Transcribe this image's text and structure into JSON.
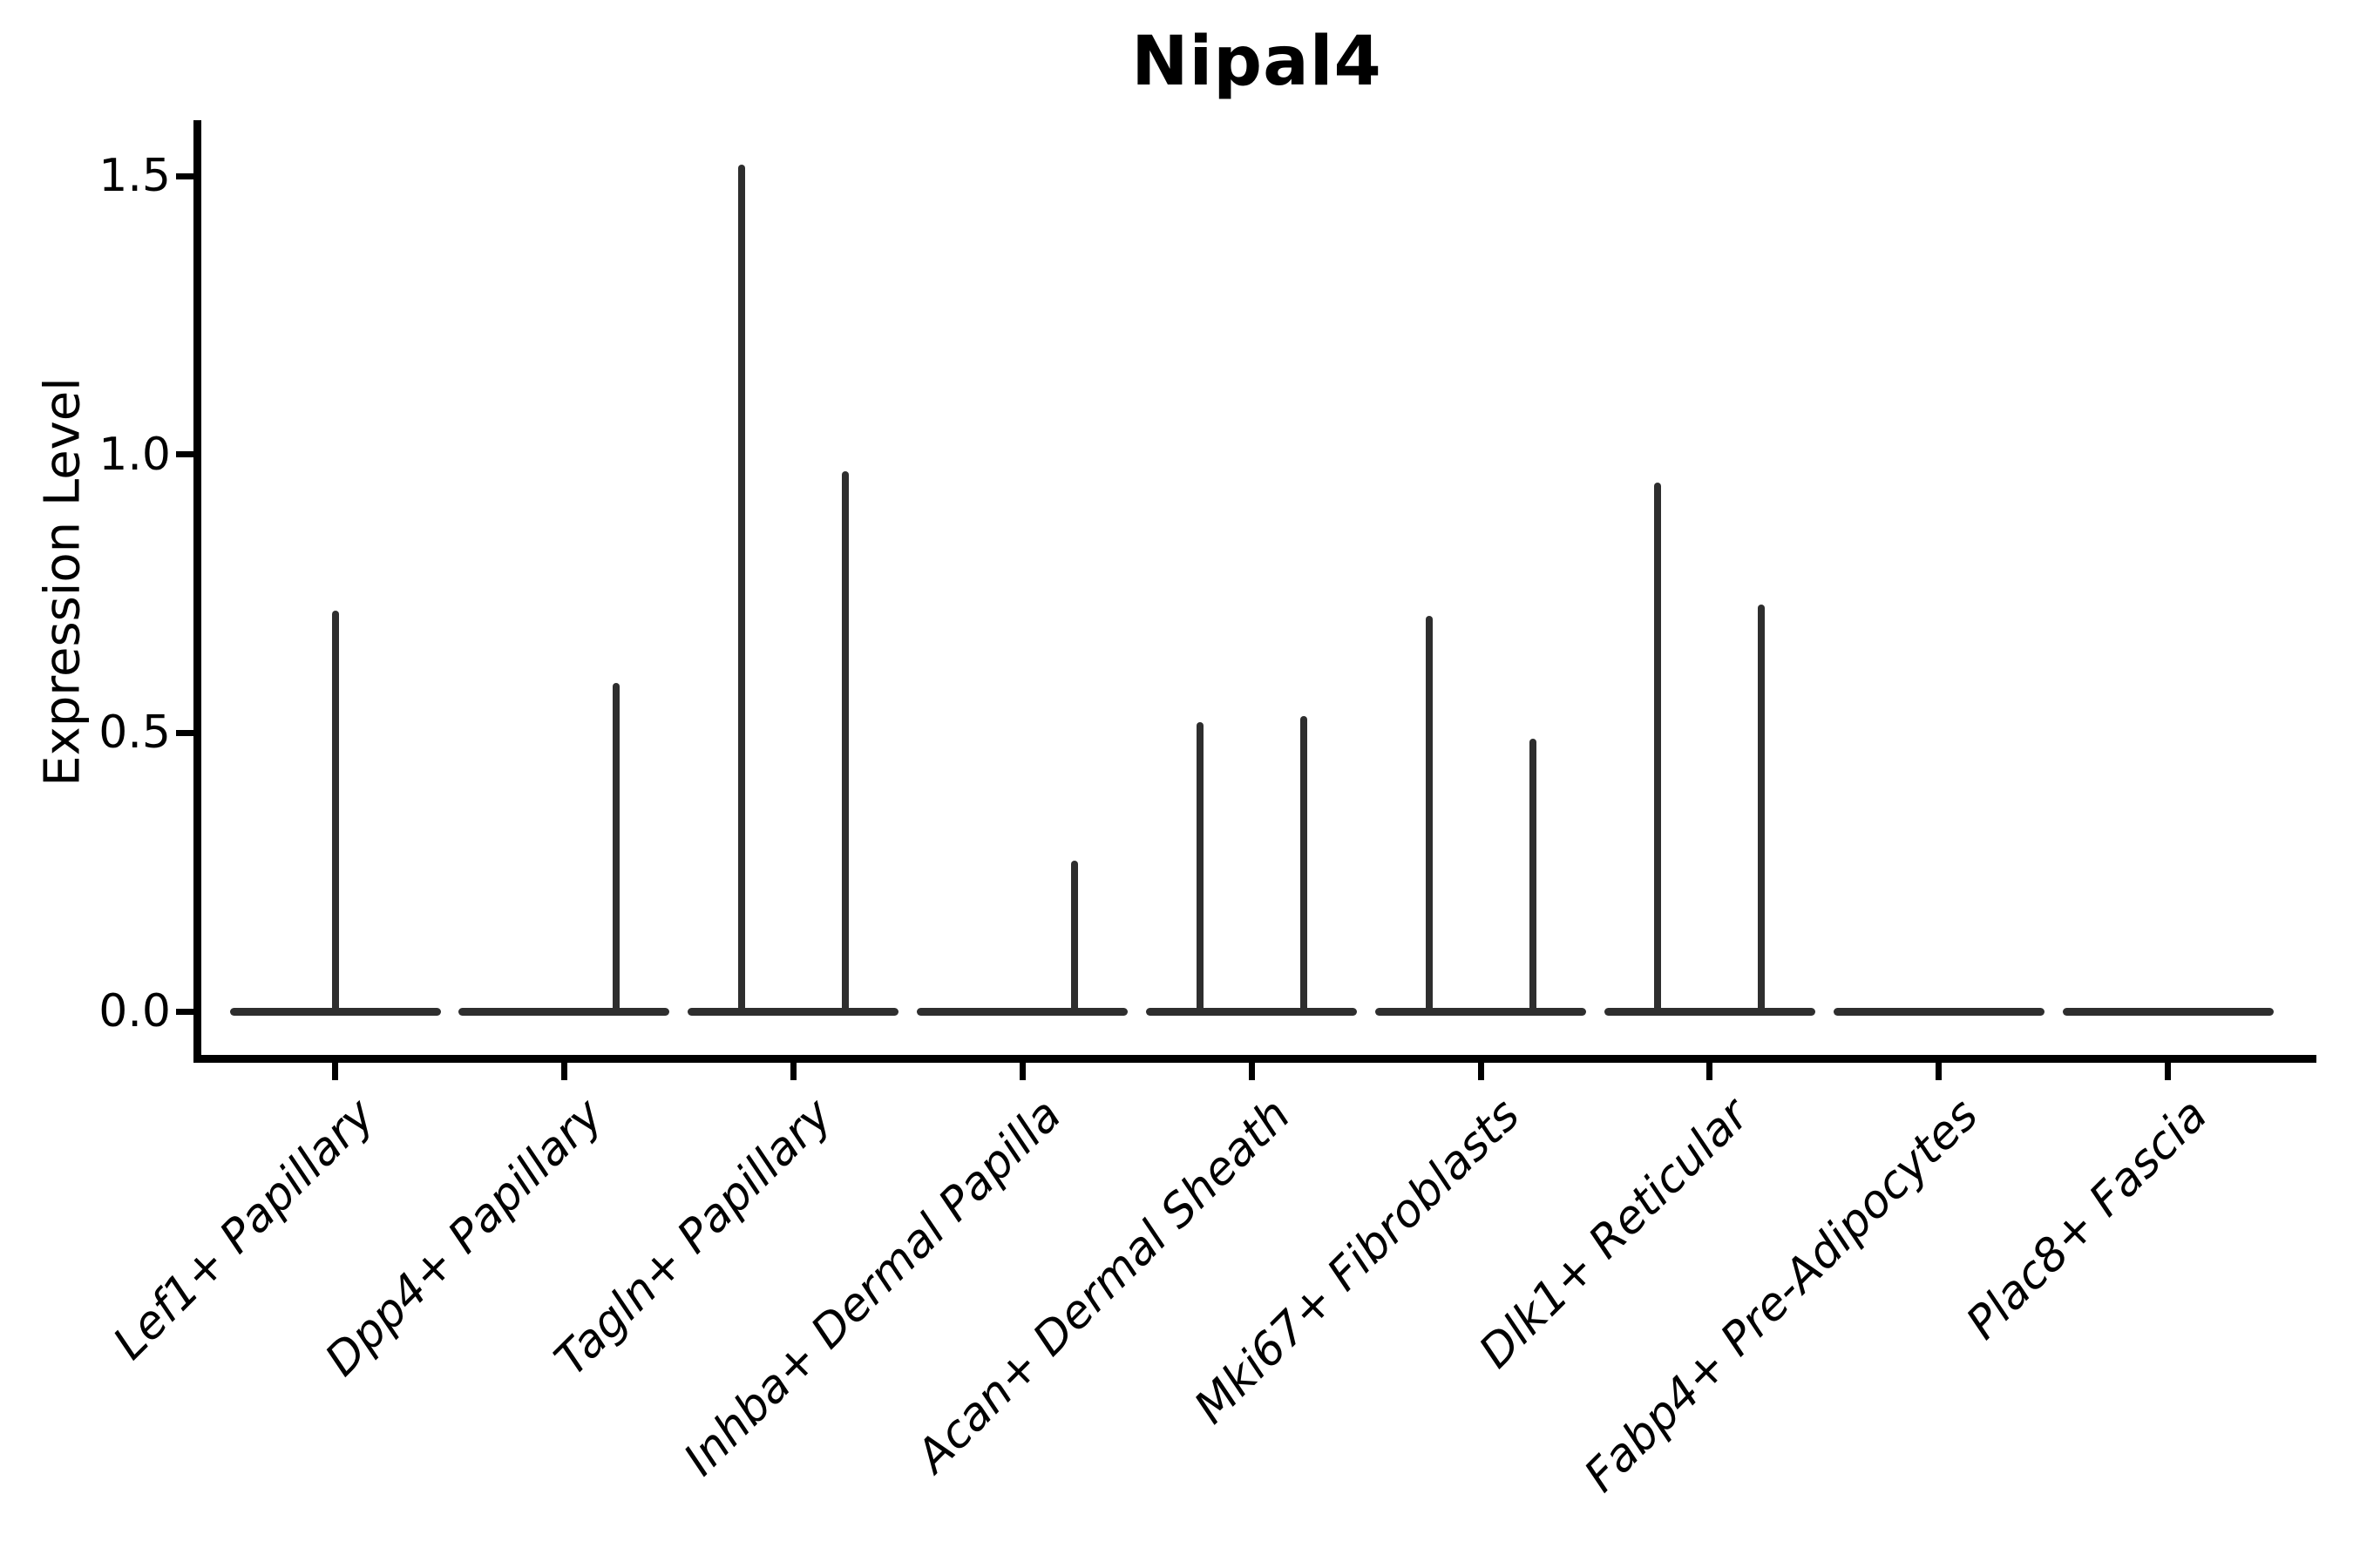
{
  "title": "Nipal4",
  "axes": {
    "y_label": "Expression Level",
    "y_tick_labels": [
      "0.0",
      "0.5",
      "1.0",
      "1.5"
    ],
    "x_category_labels": [
      "Lef1+ Papillary",
      "Dpp4+ Papillary",
      "Tagln+ Papillary",
      "Inhba+ Dermal Papilla",
      "Acan+ Dermal Sheath",
      "Mki67+ Fibroblasts",
      "Dlk1+ Reticular",
      "Fabp4+ Pre-Adipocytes",
      "Plac8+ Fascia"
    ]
  },
  "colors": {
    "violin": "#2e2e2e",
    "axis": "#000000",
    "background": "#ffffff"
  },
  "chart_data": {
    "type": "violin",
    "title": "Nipal4",
    "xlabel": "",
    "ylabel": "Expression Level",
    "ylim": [
      -0.09,
      1.59
    ],
    "y_ticks": [
      0.0,
      0.5,
      1.0,
      1.5
    ],
    "grid": false,
    "legend": "none",
    "style_note": "thin dark violins; bulk of cells at 0 expression forming flat base line, narrow spikes to max expression; some categories show two half-offset violins",
    "categories": [
      "Lef1+ Papillary",
      "Dpp4+ Papillary",
      "Tagln+ Papillary",
      "Inhba+ Dermal Papilla",
      "Acan+ Dermal Sheath",
      "Mki67+ Fibroblasts",
      "Dlk1+ Reticular",
      "Fabp4+ Pre-Adipocytes",
      "Plac8+ Fascia"
    ],
    "series": [
      {
        "category": "Lef1+ Papillary",
        "baseline_value": 0.0,
        "spikes": [
          {
            "position": "center",
            "max_expression": 0.72
          }
        ]
      },
      {
        "category": "Dpp4+ Papillary",
        "baseline_value": 0.0,
        "spikes": [
          {
            "position": "right",
            "max_expression": 0.59
          }
        ]
      },
      {
        "category": "Tagln+ Papillary",
        "baseline_value": 0.0,
        "spikes": [
          {
            "position": "left",
            "max_expression": 1.52
          },
          {
            "position": "right",
            "max_expression": 0.97
          }
        ]
      },
      {
        "category": "Inhba+ Dermal Papilla",
        "baseline_value": 0.0,
        "spikes": [
          {
            "position": "right",
            "max_expression": 0.27
          }
        ]
      },
      {
        "category": "Acan+ Dermal Sheath",
        "baseline_value": 0.0,
        "spikes": [
          {
            "position": "left",
            "max_expression": 0.52
          },
          {
            "position": "right",
            "max_expression": 0.53
          }
        ]
      },
      {
        "category": "Mki67+ Fibroblasts",
        "baseline_value": 0.0,
        "spikes": [
          {
            "position": "left",
            "max_expression": 0.71
          },
          {
            "position": "right",
            "max_expression": 0.49
          }
        ]
      },
      {
        "category": "Dlk1+ Reticular",
        "baseline_value": 0.0,
        "spikes": [
          {
            "position": "left",
            "max_expression": 0.95
          },
          {
            "position": "right",
            "max_expression": 0.73
          }
        ]
      },
      {
        "category": "Fabp4+ Pre-Adipocytes",
        "baseline_value": 0.0,
        "spikes": []
      },
      {
        "category": "Plac8+ Fascia",
        "baseline_value": 0.0,
        "spikes": []
      }
    ]
  }
}
